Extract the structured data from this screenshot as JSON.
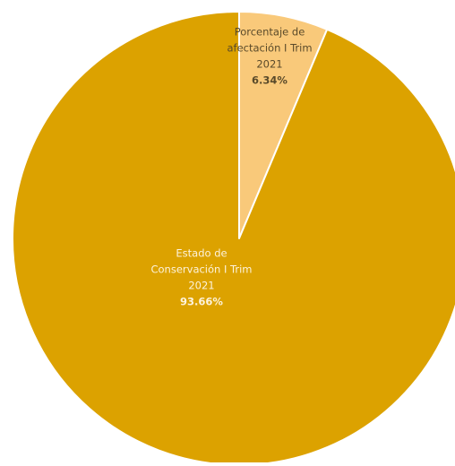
{
  "chart_data": {
    "type": "pie",
    "title": "",
    "slices": [
      {
        "label": "Porcentaje de afectación I Trim 2021",
        "label_lines": [
          "Porcentaje de",
          "afectación I Trim",
          "2021"
        ],
        "value": 6.34,
        "value_label": "6.34%",
        "color": "#f9c97a"
      },
      {
        "label": "Estado de Conservación I Trim 2021",
        "label_lines": [
          "Estado de",
          "Conservación I Trim",
          "2021"
        ],
        "value": 93.66,
        "value_label": "93.66%",
        "color": "#dca200"
      }
    ],
    "start_angle_deg": 0,
    "direction": "clockwise",
    "slice_border_color": "#ffffff",
    "legend": "none"
  }
}
